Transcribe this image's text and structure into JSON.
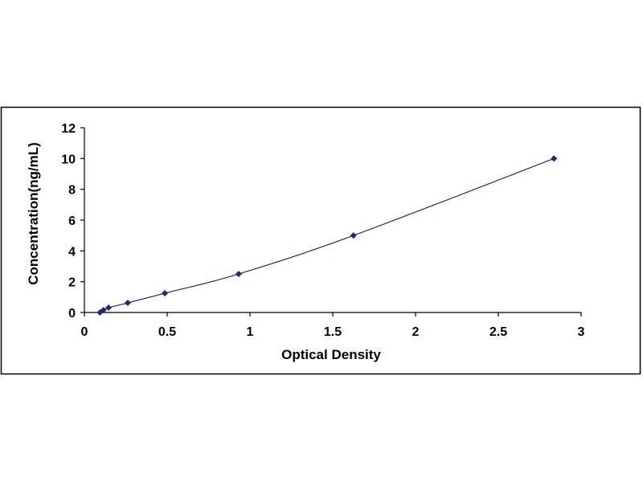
{
  "chart_data": {
    "type": "scatter",
    "title": "",
    "xlabel": "Optical Density",
    "ylabel": "Concentration(ng/mL)",
    "xlim": [
      0,
      3
    ],
    "ylim": [
      0,
      12
    ],
    "x_ticks": [
      "0",
      "0.5",
      "1",
      "1.5",
      "2",
      "2.5",
      "3"
    ],
    "y_ticks": [
      "0",
      "2",
      "4",
      "6",
      "8",
      "10",
      "12"
    ],
    "grid": false,
    "legend": "none",
    "series": [
      {
        "x": [
          0.094,
          0.115,
          0.146,
          0.262,
          0.486,
          0.932,
          1.625,
          2.836
        ],
        "y": [
          0.0,
          0.156,
          0.312,
          0.625,
          1.25,
          2.5,
          5.0,
          10.0
        ],
        "color": "#1f2a6e",
        "trendline": true
      }
    ]
  }
}
